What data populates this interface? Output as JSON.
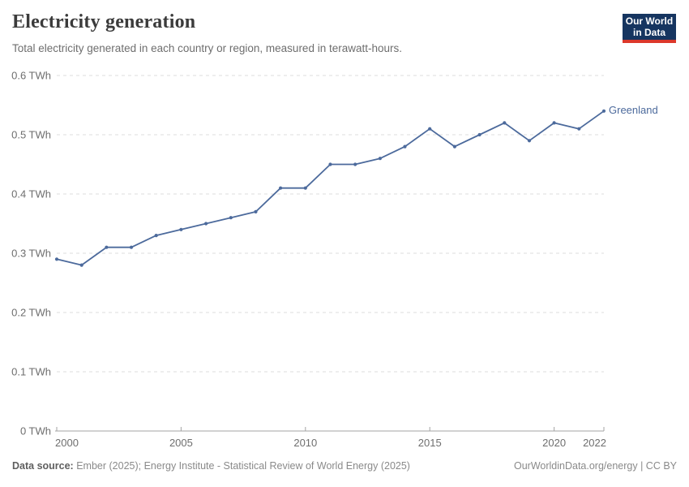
{
  "header": {
    "title": "Electricity generation",
    "subtitle": "Total electricity generated in each country or region, measured in terawatt-hours.",
    "logo": {
      "line1": "Our World",
      "line2": "in Data"
    }
  },
  "chart_data": {
    "type": "line",
    "title": "Electricity generation",
    "subtitle": "Total electricity generated in each country or region, measured in terawatt-hours.",
    "unit": "TWh",
    "grid": "horizontal-dashed",
    "legend_position": "end-of-line-label",
    "xlim": [
      2000,
      2022
    ],
    "ylim": [
      0,
      0.6
    ],
    "x": [
      2000,
      2001,
      2002,
      2003,
      2004,
      2005,
      2006,
      2007,
      2008,
      2009,
      2010,
      2011,
      2012,
      2013,
      2014,
      2015,
      2016,
      2017,
      2018,
      2019,
      2020,
      2021,
      2022
    ],
    "series": [
      {
        "name": "Greenland",
        "color": "#4c6a9c",
        "values": [
          0.29,
          0.28,
          0.31,
          0.31,
          0.33,
          0.34,
          0.35,
          0.36,
          0.37,
          0.41,
          0.41,
          0.45,
          0.45,
          0.46,
          0.48,
          0.51,
          0.48,
          0.5,
          0.52,
          0.49,
          0.52,
          0.51,
          0.54
        ]
      }
    ],
    "y_ticks": [
      {
        "value": 0,
        "label": "0 TWh"
      },
      {
        "value": 0.1,
        "label": "0.1 TWh"
      },
      {
        "value": 0.2,
        "label": "0.2 TWh"
      },
      {
        "value": 0.3,
        "label": "0.3 TWh"
      },
      {
        "value": 0.4,
        "label": "0.4 TWh"
      },
      {
        "value": 0.5,
        "label": "0.5 TWh"
      },
      {
        "value": 0.6,
        "label": "0.6 TWh"
      }
    ],
    "x_ticks": [
      {
        "value": 2000,
        "label": "2000"
      },
      {
        "value": 2005,
        "label": "2005"
      },
      {
        "value": 2010,
        "label": "2010"
      },
      {
        "value": 2015,
        "label": "2015"
      },
      {
        "value": 2020,
        "label": "2020"
      },
      {
        "value": 2022,
        "label": "2022"
      }
    ]
  },
  "colors": {
    "line": "#4c6a9c",
    "grid": "#dcdcdc",
    "axis": "#a3a3a3",
    "tick_text": "#6e6e6e",
    "title_text": "#3b3b3b",
    "logo_bg": "#163560",
    "logo_red": "#dc382b"
  },
  "footer": {
    "source_label": "Data source:",
    "source_text": "Ember (2025); Energy Institute - Statistical Review of World Energy (2025)",
    "credit": "OurWorldinData.org/energy | CC BY"
  }
}
